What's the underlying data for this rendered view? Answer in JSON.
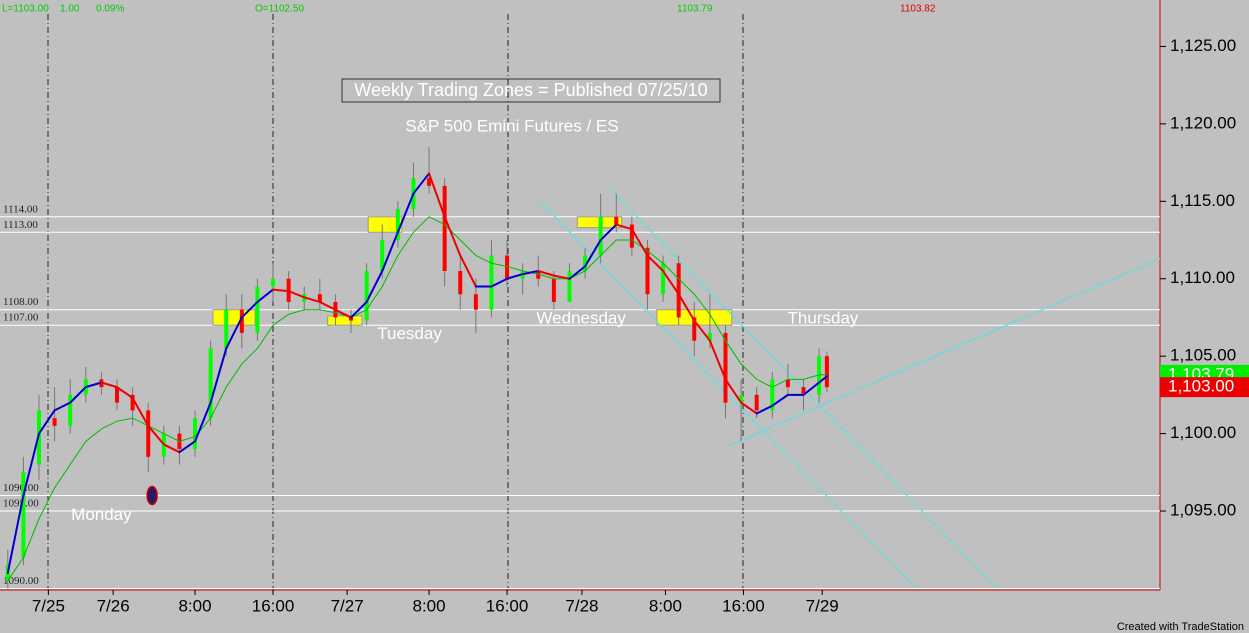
{
  "chart_data": {
    "type": "candlestick",
    "title": "Weekly Trading Zones = Published 07/25/10",
    "subtitle": "S&P 500 Emini Futures / ES",
    "header": [
      {
        "text": "L=1103.00",
        "color": "#00cc00"
      },
      {
        "text": "1.00",
        "color": "#00cc00"
      },
      {
        "text": "0.09%",
        "color": "#00cc00"
      },
      {
        "text": "O=1102.50",
        "color": "#00cc00"
      },
      {
        "text": "1103.79",
        "color": "#00cc00"
      },
      {
        "text": "1103.82",
        "color": "#dd0000"
      }
    ],
    "annotations": [
      {
        "text": "Monday",
        "x": 13,
        "y": 1094.7
      },
      {
        "text": "Tuesday",
        "x": 52.5,
        "y": 1106.4
      },
      {
        "text": "Wednesday",
        "x": 74.5,
        "y": 1107.4
      },
      {
        "text": "Thursday",
        "x": 105.5,
        "y": 1107.4
      }
    ],
    "xlim": [
      0,
      148.7
    ],
    "ylim": [
      1089.9,
      1128
    ],
    "xticks": [
      {
        "value": 6.2,
        "label": "7/25"
      },
      {
        "value": 14.5,
        "label": "7/26"
      },
      {
        "value": 25,
        "label": "8:00"
      },
      {
        "value": 35,
        "label": "16:00"
      },
      {
        "value": 44.5,
        "label": "7/27"
      },
      {
        "value": 55,
        "label": "8:00"
      },
      {
        "value": 65,
        "label": "16:00"
      },
      {
        "value": 74.6,
        "label": "7/28"
      },
      {
        "value": 85.3,
        "label": "8:00"
      },
      {
        "value": 95.3,
        "label": "16:00"
      },
      {
        "value": 105.4,
        "label": "7/29"
      }
    ],
    "yticks": [
      {
        "value": 1095,
        "label": "1,095.00"
      },
      {
        "value": 1100,
        "label": "1,100.00"
      },
      {
        "value": 1105,
        "label": "1,105.00"
      },
      {
        "value": 1110,
        "label": "1,110.00"
      },
      {
        "value": 1115,
        "label": "1,115.00"
      },
      {
        "value": 1120,
        "label": "1,120.00"
      },
      {
        "value": 1125,
        "label": "1,125.00"
      }
    ],
    "levels": [
      {
        "value": 1114,
        "label": "1114.00"
      },
      {
        "value": 1113,
        "label": "1113.00"
      },
      {
        "value": 1108,
        "label": "1108.00"
      },
      {
        "value": 1107,
        "label": "1107.00"
      },
      {
        "value": 1096,
        "label": "1096.00"
      },
      {
        "value": 1095,
        "label": "1095.00"
      },
      {
        "value": 1090,
        "label": "1090.00"
      }
    ],
    "level_color": "#ffffff",
    "zones": [
      {
        "x0": 27.3,
        "x1": 32.7,
        "top": 1108,
        "bottom": 1107
      },
      {
        "x0": 42,
        "x1": 46.4,
        "top": 1107.6,
        "bottom": 1107
      },
      {
        "x0": 47.2,
        "x1": 51.5,
        "top": 1114,
        "bottom": 1113
      },
      {
        "x0": 74,
        "x1": 79.7,
        "top": 1114,
        "bottom": 1113.3
      },
      {
        "x0": 84.2,
        "x1": 93.8,
        "top": 1108,
        "bottom": 1107
      }
    ],
    "zone_color": "#ffff00",
    "x": [
      1,
      3,
      5,
      7,
      9,
      11,
      13,
      15,
      17,
      19,
      21,
      23,
      25,
      27,
      29,
      31,
      33,
      35,
      37,
      39,
      41,
      43,
      45,
      47,
      49,
      51,
      53,
      55,
      57,
      59,
      61,
      63,
      65,
      67,
      69,
      71,
      73,
      75,
      77,
      79,
      81,
      83,
      85,
      87,
      89,
      91,
      93,
      95,
      97,
      99,
      101,
      103,
      105,
      106
    ],
    "open": [
      1090.5,
      1092,
      1098,
      1101,
      1100.5,
      1102.5,
      1103.5,
      1103,
      1102.5,
      1101.5,
      1098.5,
      1100,
      1099,
      1101,
      1105.5,
      1108,
      1106.5,
      1109.5,
      1110,
      1108.5,
      1109,
      1108.5,
      1107.5,
      1107.3,
      1110.5,
      1112.5,
      1114.5,
      1116.5,
      1116,
      1110.5,
      1109,
      1108,
      1111.5,
      1110,
      1110.5,
      1110,
      1108.5,
      1110.5,
      1111.5,
      1114,
      1113.5,
      1112,
      1109,
      1111,
      1107.5,
      1106,
      1106.5,
      1102,
      1102.5,
      1101.5,
      1103.5,
      1103,
      1102.5,
      1105
    ],
    "high": [
      1092.5,
      1098.5,
      1102.5,
      1103,
      1103.5,
      1104.3,
      1104,
      1103.5,
      1103,
      1102,
      1100.5,
      1100.5,
      1101.5,
      1106,
      1109,
      1109,
      1110,
      1111,
      1110.5,
      1109.5,
      1110,
      1109,
      1108,
      1111,
      1113.5,
      1115,
      1117.5,
      1118.5,
      1116.5,
      1111.5,
      1110,
      1112.5,
      1112.5,
      1111,
      1111.5,
      1110.5,
      1111,
      1112,
      1115.5,
      1115.5,
      1114,
      1112.5,
      1111.5,
      1111.5,
      1108.5,
      1109,
      1107,
      1103.5,
      1103,
      1104,
      1104.5,
      1103.5,
      1105.5,
      1105.3
    ],
    "low": [
      1090,
      1091.5,
      1097,
      1099.5,
      1100,
      1102,
      1102.5,
      1101.5,
      1100.5,
      1097.5,
      1098,
      1098,
      1098.5,
      1100.5,
      1105,
      1105.5,
      1106,
      1108.5,
      1108,
      1108,
      1108,
      1107,
      1106.5,
      1107,
      1110,
      1112,
      1114,
      1115.5,
      1109.5,
      1108,
      1106.5,
      1107.5,
      1109.5,
      1109,
      1109.5,
      1108,
      1108.5,
      1110,
      1111,
      1113,
      1111.5,
      1108,
      1108.5,
      1107,
      1105,
      1105.5,
      1101,
      1099.5,
      1101,
      1101,
      1102.5,
      1101.5,
      1102,
      1102.7
    ],
    "close": [
      1091.5,
      1097.5,
      1101.5,
      1100.5,
      1102.5,
      1103.5,
      1103,
      1102,
      1101.5,
      1098.5,
      1100,
      1099,
      1101,
      1105.5,
      1108,
      1106.5,
      1109.5,
      1110,
      1108.5,
      1109,
      1108.5,
      1107.5,
      1107.3,
      1110.5,
      1112.5,
      1114.5,
      1116.5,
      1116,
      1110.5,
      1109,
      1108,
      1111.5,
      1110,
      1110.5,
      1110,
      1108.5,
      1110.5,
      1111.5,
      1114,
      1113.5,
      1112,
      1109,
      1111,
      1107.5,
      1106,
      1106.5,
      1102,
      1102.5,
      1101.5,
      1103.5,
      1103,
      1102.5,
      1105,
      1103
    ],
    "up_color": "#00ff00",
    "down_color": "#ff0000",
    "fast_ma": {
      "rise_color": "#0000cc",
      "fall_color": "#ee0000",
      "values": [
        1091,
        1096,
        1100,
        1101.5,
        1102,
        1103,
        1103.3,
        1103,
        1102.3,
        1100.5,
        1099.3,
        1098.8,
        1099.5,
        1102,
        1105.5,
        1107.5,
        1108.5,
        1109.3,
        1109.2,
        1108.8,
        1108.5,
        1108,
        1107.5,
        1108.5,
        1110.5,
        1113,
        1115.5,
        1116.8,
        1114,
        1111.5,
        1109.5,
        1109.5,
        1110,
        1110.3,
        1110.5,
        1110.2,
        1110,
        1110.8,
        1112.5,
        1113.5,
        1113.2,
        1111.5,
        1110.5,
        1109,
        1107.3,
        1106,
        1103.5,
        1102,
        1101.3,
        1101.8,
        1102.5,
        1102.5,
        1103.3,
        1103.7
      ]
    },
    "slow_ma": {
      "color": "#00bb00",
      "values": [
        1090.5,
        1092,
        1094.5,
        1096.5,
        1098,
        1099.5,
        1100.3,
        1100.8,
        1101,
        1100.5,
        1100,
        1099.5,
        1099.8,
        1101,
        1103,
        1104.5,
        1105.5,
        1107,
        1107.7,
        1108,
        1108,
        1107.8,
        1107.5,
        1108,
        1109.5,
        1111.5,
        1113,
        1114,
        1113.5,
        1112.5,
        1111.5,
        1111,
        1110.8,
        1110.5,
        1110.3,
        1110,
        1110,
        1110.5,
        1111.5,
        1112.5,
        1112.5,
        1111.8,
        1111,
        1110,
        1109,
        1107.7,
        1106,
        1104.5,
        1103.5,
        1103,
        1103.5,
        1103.5,
        1103.8,
        1103.8
      ]
    },
    "marker": {
      "x": 19.5,
      "y": 1096,
      "color": "#2a1a66"
    },
    "trendlines": [
      {
        "x": [
          69,
          117.3
        ],
        "y": [
          1115.1,
          1090.1
        ]
      },
      {
        "x": [
          78.2,
          127.6
        ],
        "y": [
          1115.8,
          1090.1
        ]
      },
      {
        "x": [
          93.3,
          148.7
        ],
        "y": [
          1099.2,
          1111.3
        ]
      }
    ],
    "trend_color": "#66dddd",
    "last_labels": [
      {
        "value": 1103.79,
        "label": "1,103.79",
        "color": "#00ee00"
      },
      {
        "value": 1103,
        "label": "1,103.00",
        "color": "#ee0000"
      }
    ],
    "footer": "Created with TradeStation"
  }
}
